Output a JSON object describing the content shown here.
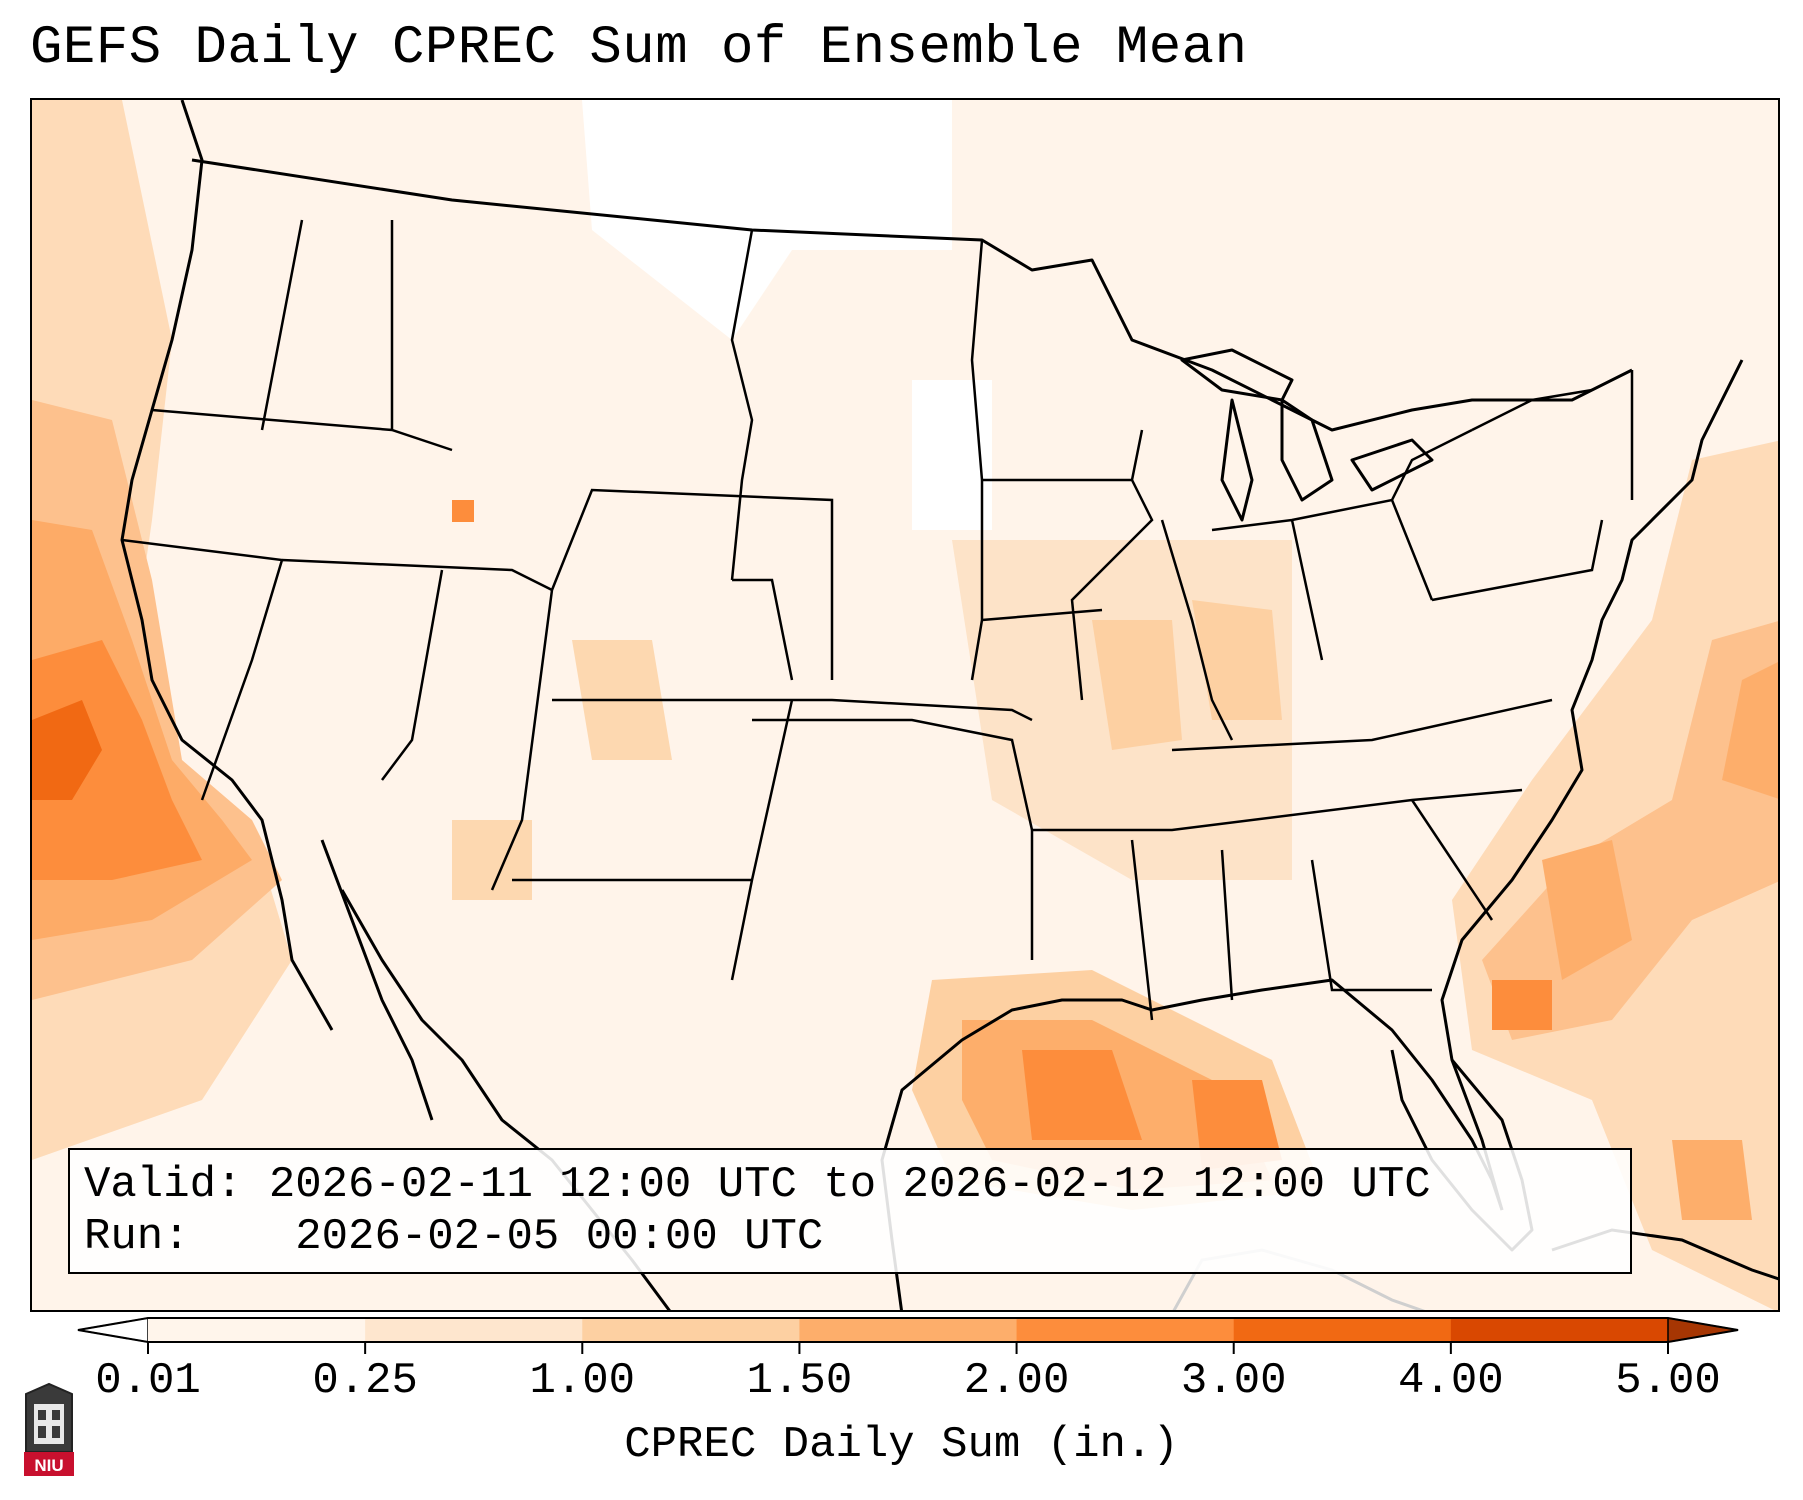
{
  "title": "GEFS Daily CPREC Sum of Ensemble Mean",
  "info": {
    "valid_label": "Valid:",
    "valid_value": "2026-02-11 12:00 UTC to 2026-02-12 12:00 UTC",
    "run_label": "Run:",
    "run_value": "2026-02-05 00:00 UTC"
  },
  "colorbar": {
    "label": "CPREC Daily Sum (in.)",
    "ticks": [
      "0.01",
      "0.25",
      "1.00",
      "1.50",
      "2.00",
      "3.00",
      "4.00",
      "5.00"
    ],
    "colors": [
      "#fff5eb",
      "#fee6ce",
      "#fdd0a2",
      "#fdae6b",
      "#fd8d3c",
      "#f16913",
      "#d94801"
    ],
    "under_color": "#ffffff",
    "over_color": "#a63603"
  },
  "logo": {
    "label": "NIU",
    "color": "#c8102e"
  }
}
